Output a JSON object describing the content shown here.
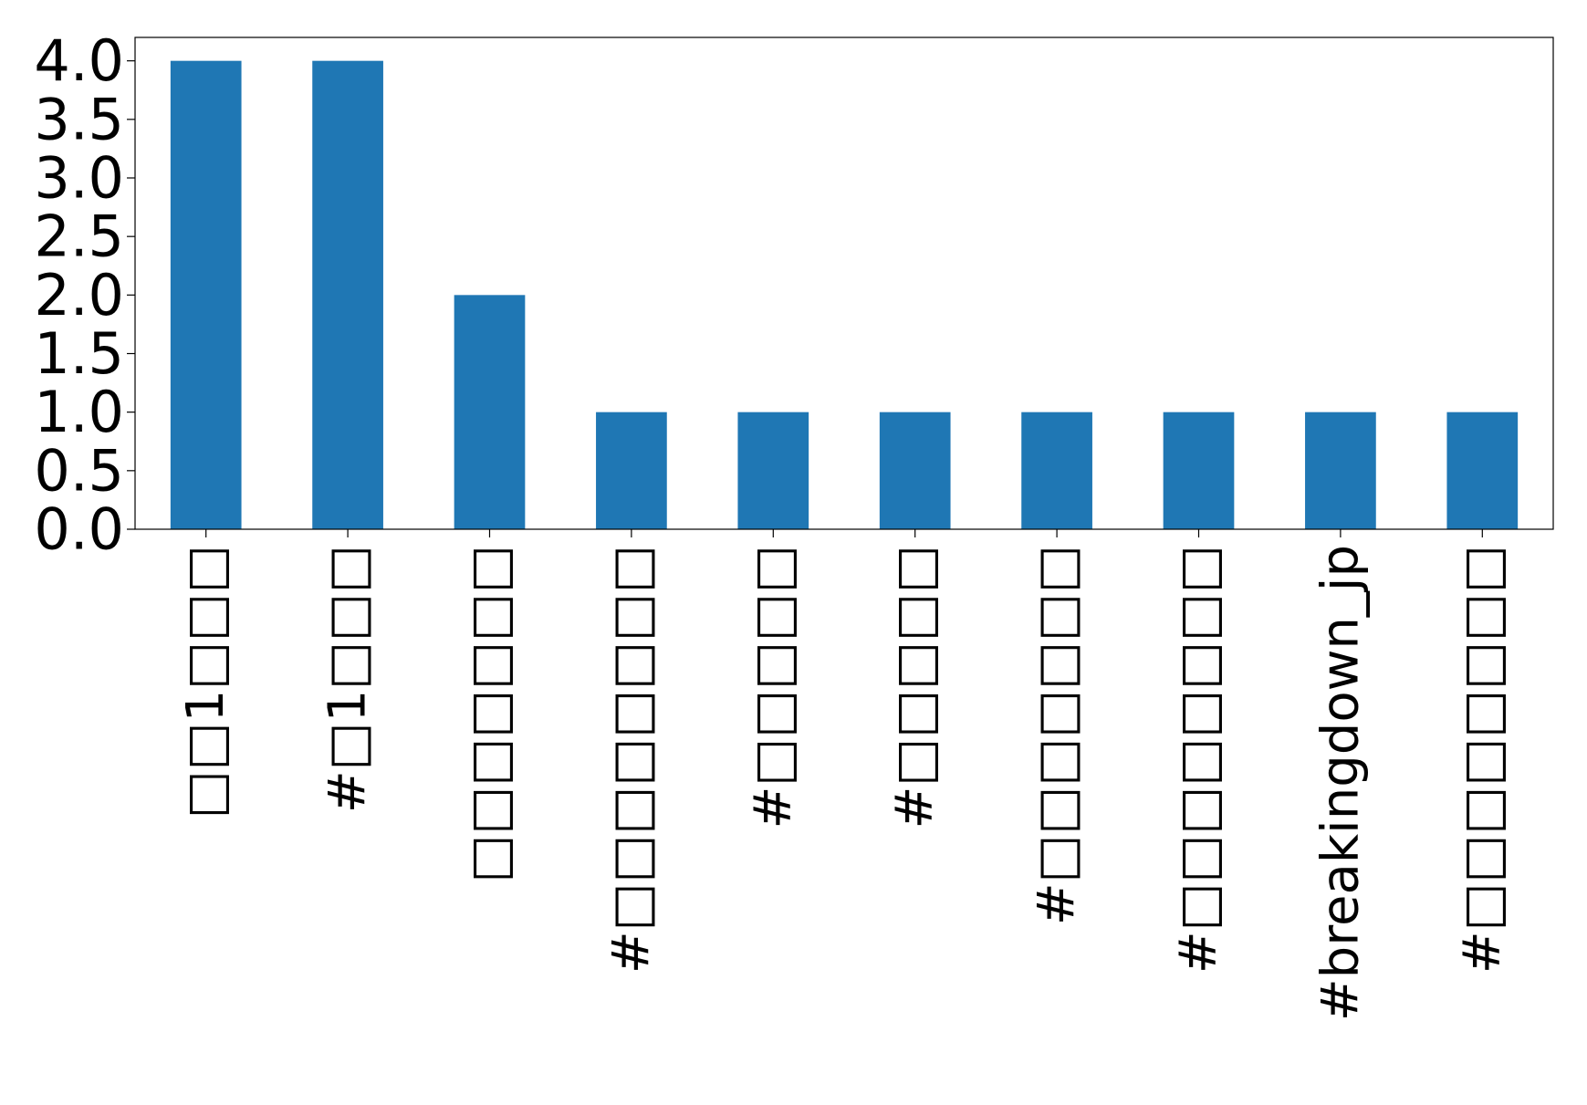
{
  "chart_data": {
    "type": "bar",
    "title": "",
    "xlabel": "",
    "ylabel": "",
    "categories": [
      "□□1□□□",
      "#□1□□□",
      "□□□□□□□",
      "#□□□□□□□□",
      "#□□□□□",
      "#□□□□□",
      "#□□□□□□□",
      "#□□□□□□□□",
      "#breakingdown_jp",
      "#□□□□□□□□"
    ],
    "values": [
      4,
      4,
      2,
      1,
      1,
      1,
      1,
      1,
      1,
      1
    ],
    "ylim": [
      0,
      4.2
    ],
    "yticks": [
      "0.0",
      "0.5",
      "1.0",
      "1.5",
      "2.0",
      "2.5",
      "3.0",
      "3.5",
      "4.0"
    ],
    "bar_color": "#1f77b4",
    "grid": false,
    "legend": "none",
    "xtick_rotation": "vertical"
  }
}
